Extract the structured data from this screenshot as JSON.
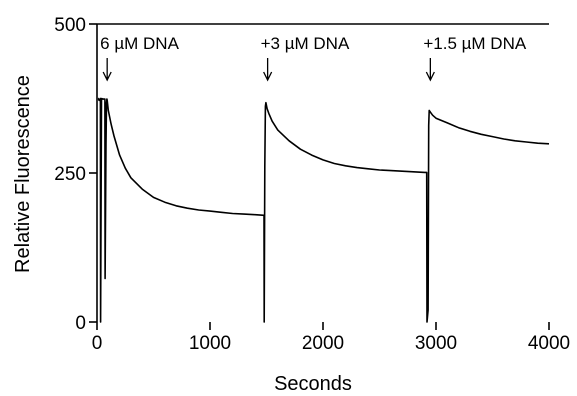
{
  "chart_data": {
    "type": "line",
    "title": "",
    "xlabel": "Seconds",
    "ylabel": "Relative Fluorescence",
    "xlim": [
      0,
      4000
    ],
    "ylim": [
      0,
      500
    ],
    "x_ticks": [
      0,
      1000,
      2000,
      3000,
      4000
    ],
    "x_tick_labels": [
      "0",
      "1000",
      "2000",
      "3000",
      "4000"
    ],
    "y_ticks": [
      0,
      250,
      500
    ],
    "y_tick_labels": [
      "0",
      "250",
      "500"
    ],
    "grid": false,
    "legend": "none",
    "annotations": [
      {
        "text": "6 µM DNA",
        "x": 90,
        "arrow": "down"
      },
      {
        "text": "+3 µM DNA",
        "x": 1510,
        "arrow": "down"
      },
      {
        "text": "+1.5 µM DNA",
        "x": 2950,
        "arrow": "down"
      }
    ],
    "series": [
      {
        "x": [
          10,
          12,
          18,
          25,
          30,
          32,
          40,
          55,
          70,
          72,
          80,
          84,
          88,
          90,
          100,
          125,
          150,
          200,
          250,
          300,
          400,
          500,
          600,
          700,
          800,
          900,
          1000,
          1100,
          1200,
          1300,
          1400,
          1478,
          1480,
          1485,
          1490,
          1495,
          1505,
          1520,
          1550,
          1600,
          1700,
          1800,
          1900,
          2000,
          2100,
          2200,
          2300,
          2400,
          2500,
          2600,
          2700,
          2800,
          2900,
          2918,
          2920,
          2930,
          2935,
          2940,
          2950,
          2970,
          3000,
          3100,
          3200,
          3300,
          3400,
          3500,
          3600,
          3700,
          3800,
          3900,
          4000
        ],
        "y": [
          375,
          375,
          372,
          372,
          375,
          0,
          375,
          374,
          374,
          73,
          300,
          368,
          374,
          372,
          355,
          332,
          312,
          280,
          258,
          242,
          223,
          209,
          201,
          195,
          191,
          188,
          186,
          184,
          182,
          181,
          180,
          179,
          0,
          260,
          362,
          368,
          358,
          350,
          337,
          322,
          304,
          290,
          280,
          272,
          266,
          262,
          259,
          257,
          255,
          254,
          253,
          252,
          251,
          251,
          0,
          20,
          330,
          355,
          352,
          347,
          342,
          334,
          326,
          320,
          315,
          311,
          307,
          304,
          302,
          300,
          299
        ]
      }
    ]
  }
}
